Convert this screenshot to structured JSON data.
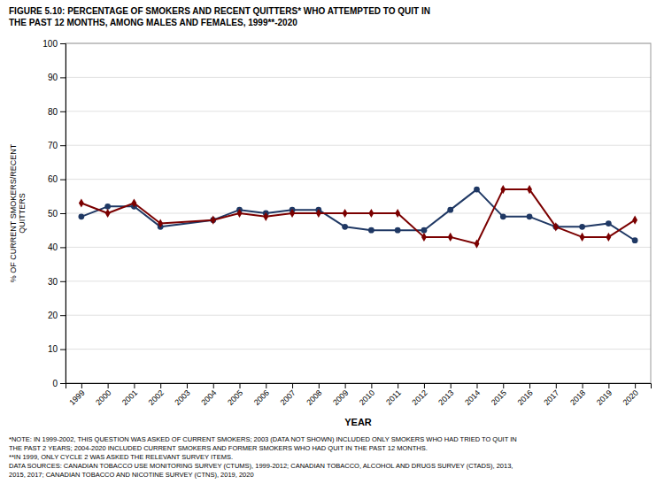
{
  "chart_data": {
    "type": "line",
    "title": "FIGURE 5.10: PERCENTAGE OF SMOKERS AND RECENT QUITTERS* WHO ATTEMPTED TO QUIT IN\nTHE PAST 12 MONTHS, AMONG MALES AND FEMALES, 1999**-2020",
    "x_label": "YEAR",
    "y_label": "% OF CURRENT SMOKERS/RECENT\nQUITTERS",
    "x": [
      1999,
      2000,
      2001,
      2002,
      2004,
      2005,
      2006,
      2007,
      2008,
      2009,
      2010,
      2011,
      2012,
      2013,
      2014,
      2015,
      2016,
      2017,
      2018,
      2019,
      2020
    ],
    "series": [
      {
        "color": "#1F3864",
        "marker": "circle",
        "values": [
          49,
          52,
          52,
          46,
          48,
          51,
          50,
          51,
          51,
          46,
          45,
          45,
          45,
          51,
          57,
          49,
          49,
          46,
          46,
          47,
          42
        ]
      },
      {
        "color": "#7B0000",
        "marker": "diamond",
        "values": [
          53,
          50,
          53,
          47,
          48,
          50,
          49,
          50,
          50,
          50,
          50,
          50,
          43,
          43,
          41,
          57,
          57,
          46,
          43,
          43,
          48
        ]
      }
    ],
    "xlim": [
      1998.4,
      2020.6
    ],
    "xticks": [
      1999,
      2000,
      2001,
      2002,
      2003,
      2004,
      2005,
      2006,
      2007,
      2008,
      2009,
      2010,
      2011,
      2012,
      2013,
      2014,
      2015,
      2016,
      2017,
      2018,
      2019,
      2020
    ],
    "ylim": [
      0,
      100
    ],
    "yticks": [
      0,
      10,
      20,
      30,
      40,
      50,
      60,
      70,
      80,
      90,
      100
    ],
    "grid": "y",
    "annotations": [
      "*NOTE: IN 1999-2002, THIS QUESTION WAS ASKED OF CURRENT SMOKERS; 2003 (DATA NOT SHOWN) INCLUDED ONLY SMOKERS WHO HAD TRIED TO QUIT IN",
      "THE PAST 2 YEARS; 2004-2020 INCLUDED CURRENT SMOKERS AND FORMER SMOKERS WHO HAD QUIT IN THE PAST 12 MONTHS.",
      "**IN 1999, ONLY CYCLE 2 WAS ASKED THE RELEVANT SURVEY ITEMS.",
      "DATA SOURCES: CANADIAN TOBACCO USE MONITORING SURVEY (CTUMS), 1999-2012; CANADIAN TOBACCO, ALCOHOL AND DRUGS SURVEY (CTADS), 2013,",
      "2015, 2017; CANADIAN TOBACCO AND NICOTINE SURVEY (CTNS), 2019, 2020"
    ]
  }
}
